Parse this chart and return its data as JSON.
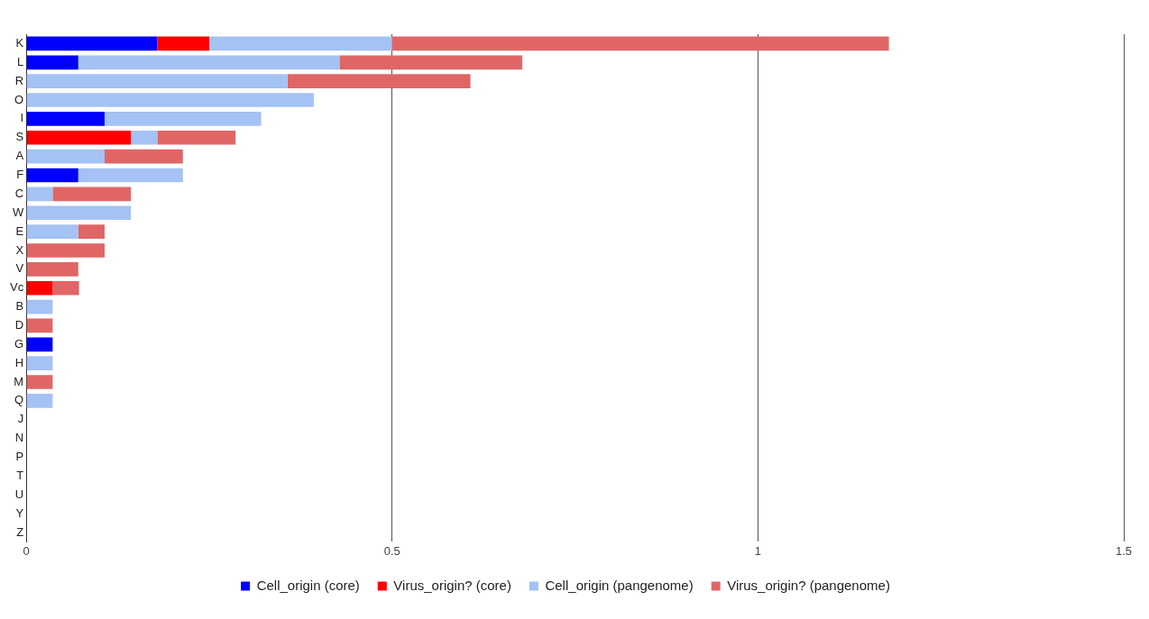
{
  "chart_data": {
    "type": "bar",
    "orientation": "horizontal",
    "stacked": true,
    "categories": [
      "K",
      "L",
      "R",
      "O",
      "I",
      "S",
      "A",
      "F",
      "C",
      "W",
      "E",
      "X",
      "V",
      "Vc",
      "B",
      "D",
      "G",
      "H",
      "M",
      "Q",
      "J",
      "N",
      "P",
      "T",
      "U",
      "Y",
      "Z"
    ],
    "series": [
      {
        "name": "Cell_origin (core)",
        "color": "#0000ff",
        "values": [
          0.179,
          0.071,
          0,
          0,
          0.107,
          0,
          0,
          0.071,
          0,
          0,
          0,
          0,
          0,
          0,
          0,
          0,
          0.036,
          0,
          0,
          0,
          0,
          0,
          0,
          0,
          0,
          0,
          0
        ]
      },
      {
        "name": "Virus_origin? (core)",
        "color": "#ff0000",
        "values": [
          0.071,
          0,
          0,
          0,
          0,
          0.143,
          0,
          0,
          0,
          0,
          0,
          0,
          0,
          0.036,
          0,
          0,
          0,
          0,
          0,
          0,
          0,
          0,
          0,
          0,
          0,
          0,
          0
        ]
      },
      {
        "name": "Cell_origin (pangenome)",
        "color": "#a4c2f4",
        "values": [
          0.25,
          0.357,
          0.357,
          0.393,
          0.214,
          0.036,
          0.107,
          0.143,
          0.036,
          0.143,
          0.071,
          0,
          0,
          0,
          0.036,
          0,
          0,
          0.036,
          0,
          0.036,
          0,
          0,
          0,
          0,
          0,
          0,
          0
        ]
      },
      {
        "name": "Virus_origin? (pangenome)",
        "color": "#e06666",
        "values": [
          0.679,
          0.25,
          0.25,
          0,
          0,
          0.107,
          0.107,
          0,
          0.107,
          0,
          0.036,
          0.107,
          0.071,
          0.036,
          0,
          0.036,
          0,
          0,
          0.036,
          0,
          0,
          0,
          0,
          0,
          0,
          0,
          0
        ]
      }
    ],
    "xlim": [
      0,
      1.5
    ],
    "xticks": [
      0,
      0.5,
      1,
      1.5
    ],
    "grid": "x",
    "legend": "bottom"
  }
}
